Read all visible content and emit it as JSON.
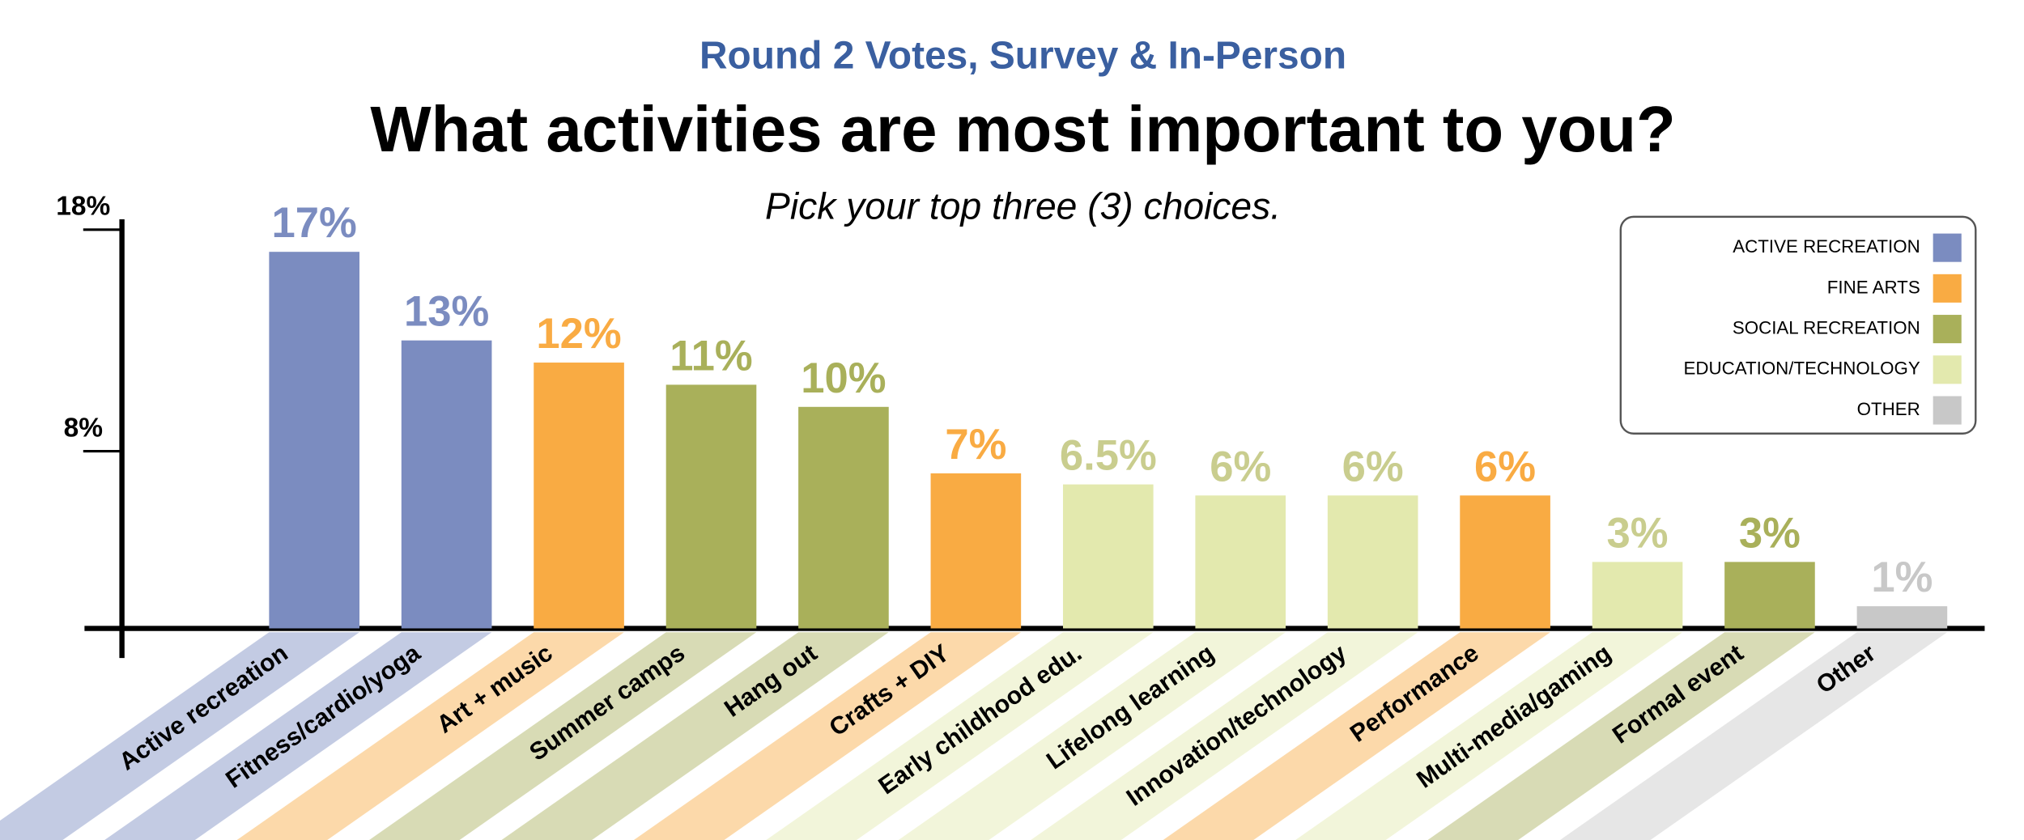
{
  "chart_data": {
    "type": "bar",
    "subtitle": "Round 2 Votes, Survey & In-Person",
    "title": "What activities are most important to you?",
    "note": "Pick your top three (3) choices.",
    "categories": [
      "Active recreation",
      "Fitness/cardio/yoga",
      "Art + music",
      "Summer camps",
      "Hang out",
      "Crafts + DIY",
      "Early childhood edu.",
      "Lifelong learning",
      "Innovation/technology",
      "Performance",
      "Multi-media/gaming",
      "Formal event",
      "Other"
    ],
    "series": [
      {
        "name": "ACTIVE RECREATION",
        "color": "#7b8cc0",
        "label_color": "#7b8cc0",
        "values": [
          17,
          13,
          null,
          null,
          null,
          null,
          null,
          null,
          null,
          null,
          null,
          null,
          null
        ],
        "value_labels": [
          "17%",
          "13%",
          null,
          null,
          null,
          null,
          null,
          null,
          null,
          null,
          null,
          null,
          null
        ]
      },
      {
        "name": "FINE ARTS",
        "color": "#f9ab43",
        "label_color": "#f9ab43",
        "values": [
          null,
          null,
          12,
          null,
          null,
          7,
          null,
          null,
          null,
          6,
          null,
          null,
          null
        ],
        "value_labels": [
          null,
          null,
          "12%",
          null,
          null,
          "7%",
          null,
          null,
          null,
          "6%",
          null,
          null,
          null
        ]
      },
      {
        "name": "SOCIAL RECREATION",
        "color": "#a9b05a",
        "label_color": "#a9b05a",
        "values": [
          null,
          null,
          null,
          11,
          10,
          null,
          null,
          null,
          null,
          null,
          null,
          3,
          null
        ],
        "value_labels": [
          null,
          null,
          null,
          "11%",
          "10%",
          null,
          null,
          null,
          null,
          null,
          null,
          "3%",
          null
        ]
      },
      {
        "name": "EDUCATION/TECHNOLOGY",
        "color": "#e3e9ae",
        "label_color": "#c9cd8e",
        "values": [
          null,
          null,
          null,
          null,
          null,
          null,
          6.5,
          6,
          6,
          null,
          3,
          null,
          null
        ],
        "value_labels": [
          null,
          null,
          null,
          null,
          null,
          null,
          "6.5%",
          "6%",
          "6%",
          null,
          "3%",
          null,
          null
        ]
      },
      {
        "name": "OTHER",
        "color": "#c8c8c8",
        "label_color": "#c8c8c8",
        "values": [
          null,
          null,
          null,
          null,
          null,
          null,
          null,
          null,
          null,
          null,
          null,
          null,
          1
        ],
        "value_labels": [
          null,
          null,
          null,
          null,
          null,
          null,
          null,
          null,
          null,
          null,
          null,
          null,
          "1%"
        ]
      }
    ],
    "ylim": [
      0,
      18
    ],
    "yticks": [
      {
        "value": 8,
        "label": "8%"
      },
      {
        "value": 18,
        "label": "18%"
      }
    ],
    "legend": "top-right"
  }
}
